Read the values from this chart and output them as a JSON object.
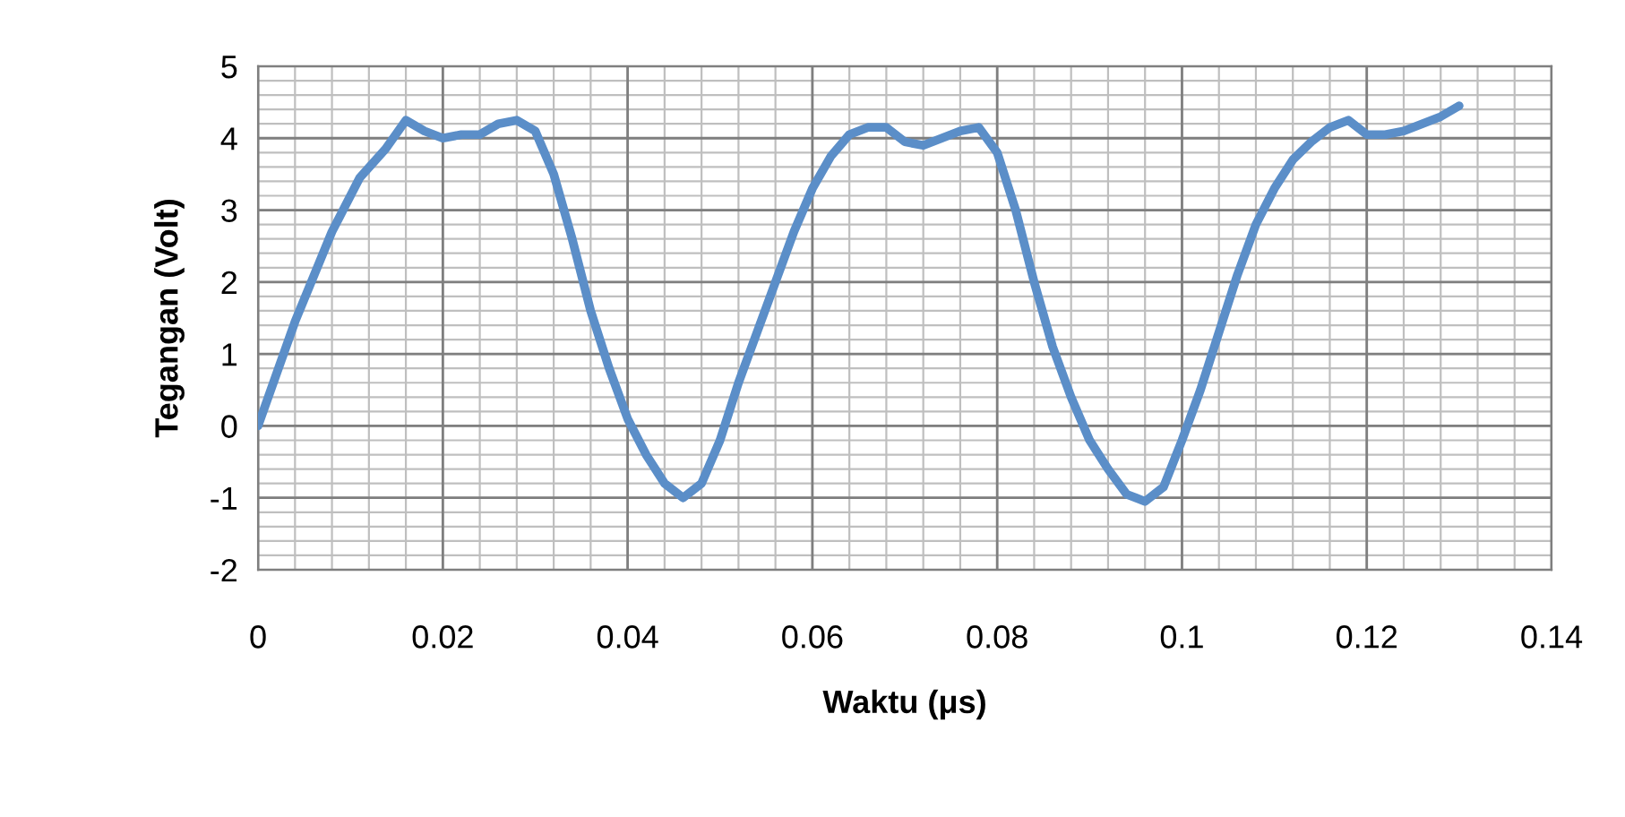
{
  "chart_data": {
    "type": "line",
    "xlabel": "Waktu (μs)",
    "ylabel": "Tegangan (Volt)",
    "series": [
      {
        "color": "#5b8ec8",
        "x": [
          0,
          0.004,
          0.008,
          0.011,
          0.0138,
          0.016,
          0.018,
          0.02,
          0.022,
          0.024,
          0.026,
          0.028,
          0.03,
          0.032,
          0.034,
          0.036,
          0.038,
          0.04,
          0.042,
          0.044,
          0.046,
          0.048,
          0.05,
          0.052,
          0.054,
          0.056,
          0.058,
          0.06,
          0.062,
          0.064,
          0.066,
          0.068,
          0.07,
          0.072,
          0.074,
          0.076,
          0.078,
          0.08,
          0.082,
          0.084,
          0.086,
          0.088,
          0.09,
          0.092,
          0.094,
          0.096,
          0.098,
          0.1,
          0.102,
          0.104,
          0.106,
          0.108,
          0.11,
          0.112,
          0.114,
          0.116,
          0.118,
          0.12,
          0.122,
          0.124,
          0.126,
          0.128,
          0.13
        ],
        "values": [
          0,
          1.45,
          2.7,
          3.45,
          3.85,
          4.25,
          4.1,
          4.0,
          4.05,
          4.05,
          4.2,
          4.25,
          4.1,
          3.5,
          2.6,
          1.6,
          0.8,
          0.1,
          -0.4,
          -0.8,
          -1.0,
          -0.8,
          -0.2,
          0.6,
          1.3,
          2.0,
          2.7,
          3.3,
          3.75,
          4.05,
          4.15,
          4.15,
          3.95,
          3.9,
          4.0,
          4.1,
          4.15,
          3.8,
          3.0,
          2.0,
          1.1,
          0.4,
          -0.2,
          -0.6,
          -0.95,
          -1.05,
          -0.85,
          -0.2,
          0.5,
          1.3,
          2.1,
          2.8,
          3.3,
          3.7,
          3.95,
          4.15,
          4.25,
          4.05,
          4.05,
          4.1,
          4.2,
          4.3,
          4.45
        ]
      }
    ],
    "xlim": [
      0,
      0.14
    ],
    "xticks": [
      0,
      0.02,
      0.04,
      0.06,
      0.08,
      0.1,
      0.12,
      0.14
    ],
    "ylim": [
      -2,
      5
    ],
    "yticks": [
      -2,
      -1,
      0,
      1,
      2,
      3,
      4,
      5
    ],
    "grid": true,
    "marker": "none",
    "line_style": "solid"
  }
}
